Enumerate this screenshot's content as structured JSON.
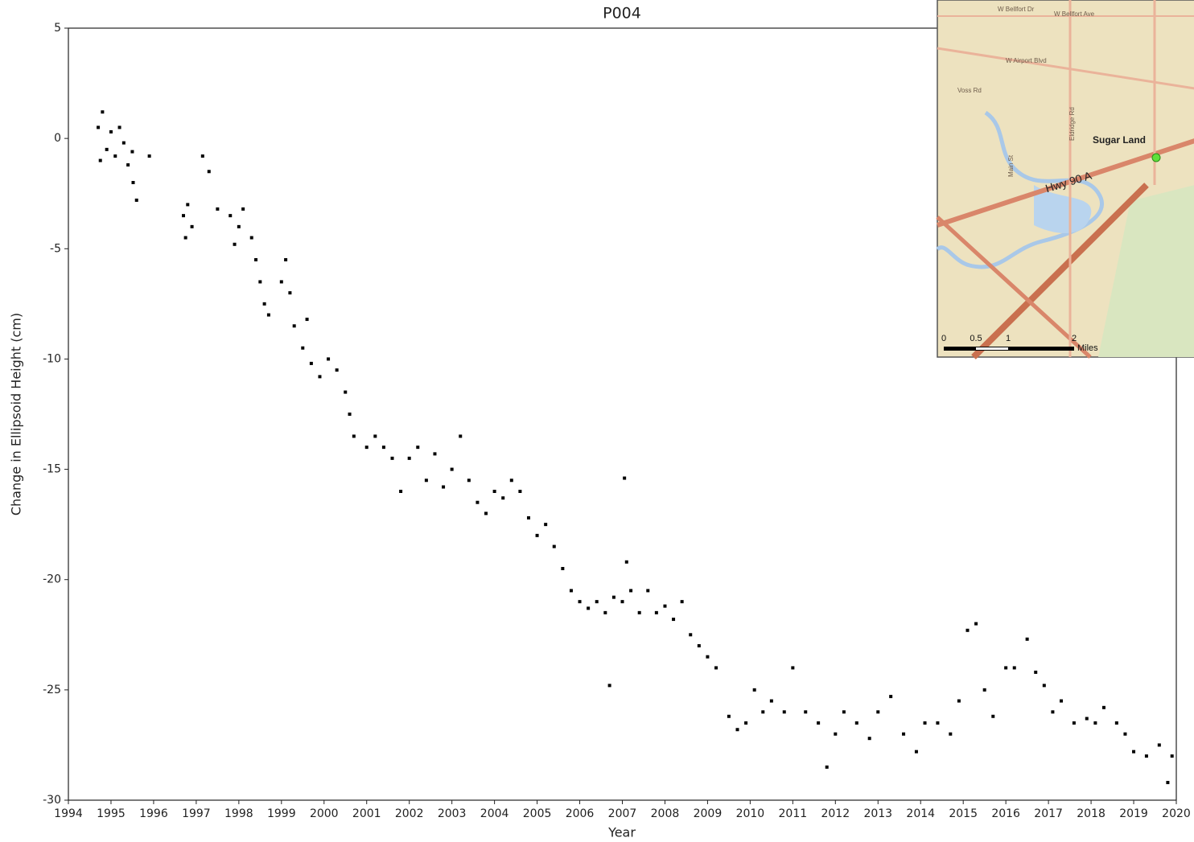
{
  "chart_data": {
    "type": "scatter",
    "title": "P004",
    "x_label": "Year",
    "y_label": "Change in Ellipsoid Height (cm)",
    "color": "#000000",
    "xlim": [
      1994,
      2020
    ],
    "xticks": [
      1994,
      1995,
      1996,
      1997,
      1998,
      1999,
      2000,
      2001,
      2002,
      2003,
      2004,
      2005,
      2006,
      2007,
      2008,
      2009,
      2010,
      2011,
      2012,
      2013,
      2014,
      2015,
      2016,
      2017,
      2018,
      2019,
      2020
    ],
    "ylim": [
      -30,
      5
    ],
    "yticks": [
      -30,
      -25,
      -20,
      -15,
      -10,
      -5,
      0,
      5
    ],
    "x": [
      1994.7,
      1994.75,
      1994.8,
      1994.9,
      1995.0,
      1995.1,
      1995.2,
      1995.3,
      1995.4,
      1995.5,
      1995.52,
      1995.6,
      1995.9,
      1996.7,
      1996.75,
      1996.8,
      1996.9,
      1997.15,
      1997.3,
      1997.5,
      1997.8,
      1997.9,
      1998.0,
      1998.1,
      1998.3,
      1998.4,
      1998.5,
      1998.6,
      1998.7,
      1999.0,
      1999.1,
      1999.2,
      1999.3,
      1999.5,
      1999.6,
      1999.7,
      1999.9,
      2000.1,
      2000.3,
      2000.5,
      2000.6,
      2000.7,
      2001.0,
      2001.2,
      2001.4,
      2001.6,
      2001.8,
      2002.0,
      2002.2,
      2002.4,
      2002.6,
      2002.8,
      2003.0,
      2003.2,
      2003.4,
      2003.6,
      2003.8,
      2004.0,
      2004.2,
      2004.4,
      2004.6,
      2004.8,
      2005.0,
      2005.2,
      2005.4,
      2005.6,
      2005.8,
      2006.0,
      2006.2,
      2006.4,
      2006.6,
      2006.7,
      2006.8,
      2007.0,
      2007.05,
      2007.1,
      2007.2,
      2007.4,
      2007.6,
      2007.8,
      2008.0,
      2008.2,
      2008.4,
      2008.6,
      2008.8,
      2009.0,
      2009.2,
      2009.5,
      2009.7,
      2009.9,
      2010.1,
      2010.3,
      2010.5,
      2010.8,
      2011.0,
      2011.3,
      2011.6,
      2011.8,
      2012.0,
      2012.2,
      2012.5,
      2012.8,
      2013.0,
      2013.3,
      2013.6,
      2013.9,
      2014.1,
      2014.4,
      2014.7,
      2014.9,
      2015.1,
      2015.3,
      2015.5,
      2015.7,
      2016.0,
      2016.2,
      2016.5,
      2016.7,
      2016.9,
      2017.1,
      2017.3,
      2017.6,
      2017.9,
      2018.1,
      2018.3,
      2018.6,
      2018.8,
      2019.0,
      2019.3,
      2019.6,
      2019.8,
      2019.9
    ],
    "values": [
      0.5,
      -1,
      1.2,
      -0.5,
      0.3,
      -0.8,
      0.5,
      -0.2,
      -1.2,
      -0.6,
      -2,
      -2.8,
      -0.8,
      -3.5,
      -4.5,
      -3,
      -4,
      -0.8,
      -1.5,
      -3.2,
      -3.5,
      -4.8,
      -4,
      -3.2,
      -4.5,
      -5.5,
      -6.5,
      -7.5,
      -8,
      -6.5,
      -5.5,
      -7,
      -8.5,
      -9.5,
      -8.2,
      -10.2,
      -10.8,
      -10,
      -10.5,
      -11.5,
      -12.5,
      -13.5,
      -14,
      -13.5,
      -14,
      -14.5,
      -16,
      -14.5,
      -14,
      -15.5,
      -14.3,
      -15.8,
      -15,
      -13.5,
      -15.5,
      -16.5,
      -17,
      -16,
      -16.3,
      -15.5,
      -16,
      -17.2,
      -18,
      -17.5,
      -18.5,
      -19.5,
      -20.5,
      -21,
      -21.3,
      -21,
      -21.5,
      -24.8,
      -20.8,
      -21,
      -15.4,
      -19.2,
      -20.5,
      -21.5,
      -20.5,
      -21.5,
      -21.2,
      -21.8,
      -21,
      -22.5,
      -23,
      -23.5,
      -24,
      -26.2,
      -26.8,
      -26.5,
      -25,
      -26,
      -25.5,
      -26,
      -24,
      -26,
      -26.5,
      -28.5,
      -27,
      -26,
      -26.5,
      -27.2,
      -26,
      -25.3,
      -27,
      -27.8,
      -26.5,
      -26.5,
      -27,
      -25.5,
      -22.3,
      -22,
      -25,
      -26.2,
      -24,
      -24,
      -22.7,
      -24.2,
      -24.8,
      -26,
      -25.5,
      -26.5,
      -26.3,
      -26.5,
      -25.8,
      -26.5,
      -27,
      -27.8,
      -28,
      -27.5,
      -29.2,
      -28
    ]
  },
  "map_inset": {
    "place": "Sugar Land",
    "road": "Hwy 90 A",
    "streets": [
      "W Bellfort Dr",
      "W Bellfort Ave",
      "W Airport Blvd",
      "Voss Rd",
      "Eldridge Rd",
      "Main St"
    ],
    "scale_labels": [
      "0",
      "0.5",
      "1",
      "2"
    ],
    "scale_unit": "Miles"
  }
}
